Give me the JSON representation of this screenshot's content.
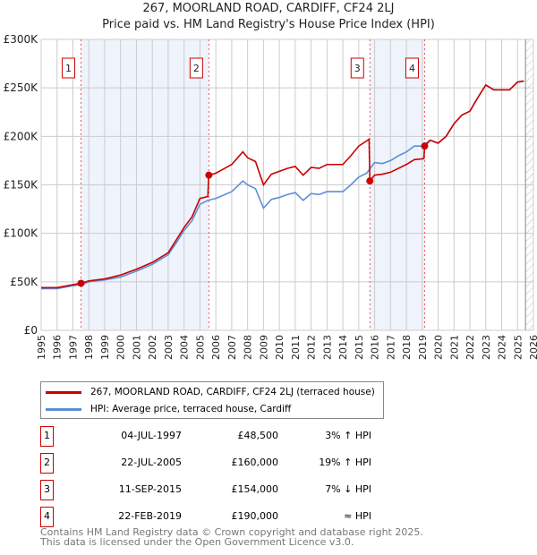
{
  "title": "267, MOORLAND ROAD, CARDIFF, CF24 2LJ",
  "subtitle": "Price paid vs. HM Land Registry's House Price Index (HPI)",
  "chart_data": {
    "type": "line",
    "ylim": [
      0,
      300000
    ],
    "xlim": [
      1995,
      2026
    ],
    "yticks": [
      {
        "v": 0,
        "label": "£0"
      },
      {
        "v": 50000,
        "label": "£50K"
      },
      {
        "v": 100000,
        "label": "£100K"
      },
      {
        "v": 150000,
        "label": "£150K"
      },
      {
        "v": 200000,
        "label": "£200K"
      },
      {
        "v": 250000,
        "label": "£250K"
      },
      {
        "v": 300000,
        "label": "£300K"
      }
    ],
    "xticks": [
      "1995",
      "1996",
      "1997",
      "1998",
      "1999",
      "2000",
      "2001",
      "2002",
      "2003",
      "2004",
      "2005",
      "2006",
      "2007",
      "2008",
      "2009",
      "2010",
      "2011",
      "2012",
      "2013",
      "2014",
      "2015",
      "2016",
      "2017",
      "2018",
      "2019",
      "2020",
      "2021",
      "2022",
      "2023",
      "2024",
      "2025",
      "2026"
    ],
    "shaded": [
      [
        1997.5,
        2005.55
      ],
      [
        2015.7,
        2019.15
      ]
    ],
    "hatch_from": 2025.5,
    "series": [
      {
        "name": "267, MOORLAND ROAD, CARDIFF, CF24 2LJ (terraced house)",
        "color": "#cc0000",
        "x": [
          1995,
          1996,
          1997,
          1997.5,
          1998,
          1999,
          2000,
          2001,
          2002,
          2003,
          2003.5,
          2004,
          2004.5,
          2005,
          2005.5,
          2005.55,
          2006,
          2007,
          2007.7,
          2008,
          2008.5,
          2009,
          2009.5,
          2010,
          2010.5,
          2011,
          2011.5,
          2012,
          2012.5,
          2013,
          2014,
          2014.5,
          2015,
          2015.65,
          2015.7,
          2016,
          2016.5,
          2017,
          2017.5,
          2018,
          2018.5,
          2019.1,
          2019.15,
          2019.5,
          2020,
          2020.5,
          2021,
          2021.5,
          2022,
          2022.5,
          2023,
          2023.5,
          2024,
          2024.5,
          2025,
          2025.4
        ],
        "y": [
          44000,
          44000,
          47000,
          48500,
          51000,
          53000,
          57000,
          63000,
          70000,
          80000,
          93000,
          106000,
          117000,
          136000,
          138000,
          160000,
          162000,
          171000,
          184000,
          178000,
          174000,
          150000,
          161000,
          164000,
          167000,
          169000,
          160000,
          168000,
          167000,
          171000,
          171000,
          180000,
          190000,
          197000,
          154000,
          160000,
          161000,
          163000,
          167000,
          171000,
          176000,
          177000,
          190000,
          196000,
          193000,
          200000,
          213000,
          222000,
          226000,
          240000,
          253000,
          248000,
          248000,
          248000,
          256000,
          257000
        ]
      },
      {
        "name": "HPI: Average price, terraced house, Cardiff",
        "color": "#5b8fd6",
        "x": [
          1995,
          1996,
          1997,
          1997.5,
          1998,
          1999,
          2000,
          2001,
          2002,
          2003,
          2003.5,
          2004,
          2004.5,
          2005,
          2005.5,
          2006,
          2007,
          2007.7,
          2008,
          2008.5,
          2009,
          2009.5,
          2010,
          2010.5,
          2011,
          2011.5,
          2012,
          2012.5,
          2013,
          2014,
          2014.5,
          2015,
          2015.5,
          2016,
          2016.5,
          2017,
          2017.5,
          2018,
          2018.5,
          2019,
          2019.5,
          2020,
          2020.5,
          2021,
          2021.5,
          2022,
          2022.5,
          2023,
          2023.5,
          2024,
          2024.5,
          2025,
          2025.4
        ],
        "y": [
          43000,
          43000,
          46000,
          47000,
          50000,
          52000,
          55000,
          61000,
          68000,
          78000,
          90000,
          103000,
          113000,
          130000,
          134000,
          136000,
          143000,
          154000,
          150000,
          146000,
          126000,
          135000,
          137000,
          140000,
          142000,
          134000,
          141000,
          140000,
          143000,
          143000,
          150000,
          158000,
          162000,
          173000,
          172000,
          175000,
          180000,
          184000,
          190000,
          190000,
          196000,
          193000,
          200000,
          213000,
          222000,
          226000,
          240000,
          253000,
          248000,
          248000,
          248000,
          256000,
          257000
        ]
      }
    ],
    "sales": [
      {
        "n": "1",
        "x": 1997.51,
        "y": 48500,
        "date": "04-JUL-1997",
        "price": "£48,500",
        "hpi": "3% ↑ HPI"
      },
      {
        "n": "2",
        "x": 2005.56,
        "y": 160000,
        "date": "22-JUL-2005",
        "price": "£160,000",
        "hpi": "19% ↑ HPI"
      },
      {
        "n": "3",
        "x": 2015.7,
        "y": 154000,
        "date": "11-SEP-2015",
        "price": "£154,000",
        "hpi": "7% ↓ HPI"
      },
      {
        "n": "4",
        "x": 2019.15,
        "y": 190000,
        "date": "22-FEB-2019",
        "price": "£190,000",
        "hpi": "≈ HPI"
      }
    ]
  },
  "legend": {
    "red": "267, MOORLAND ROAD, CARDIFF, CF24 2LJ (terraced house)",
    "blue": "HPI: Average price, terraced house, Cardiff"
  },
  "footer": {
    "line1": "Contains HM Land Registry data © Crown copyright and database right 2025.",
    "line2": "This data is licensed under the Open Government Licence v3.0."
  }
}
